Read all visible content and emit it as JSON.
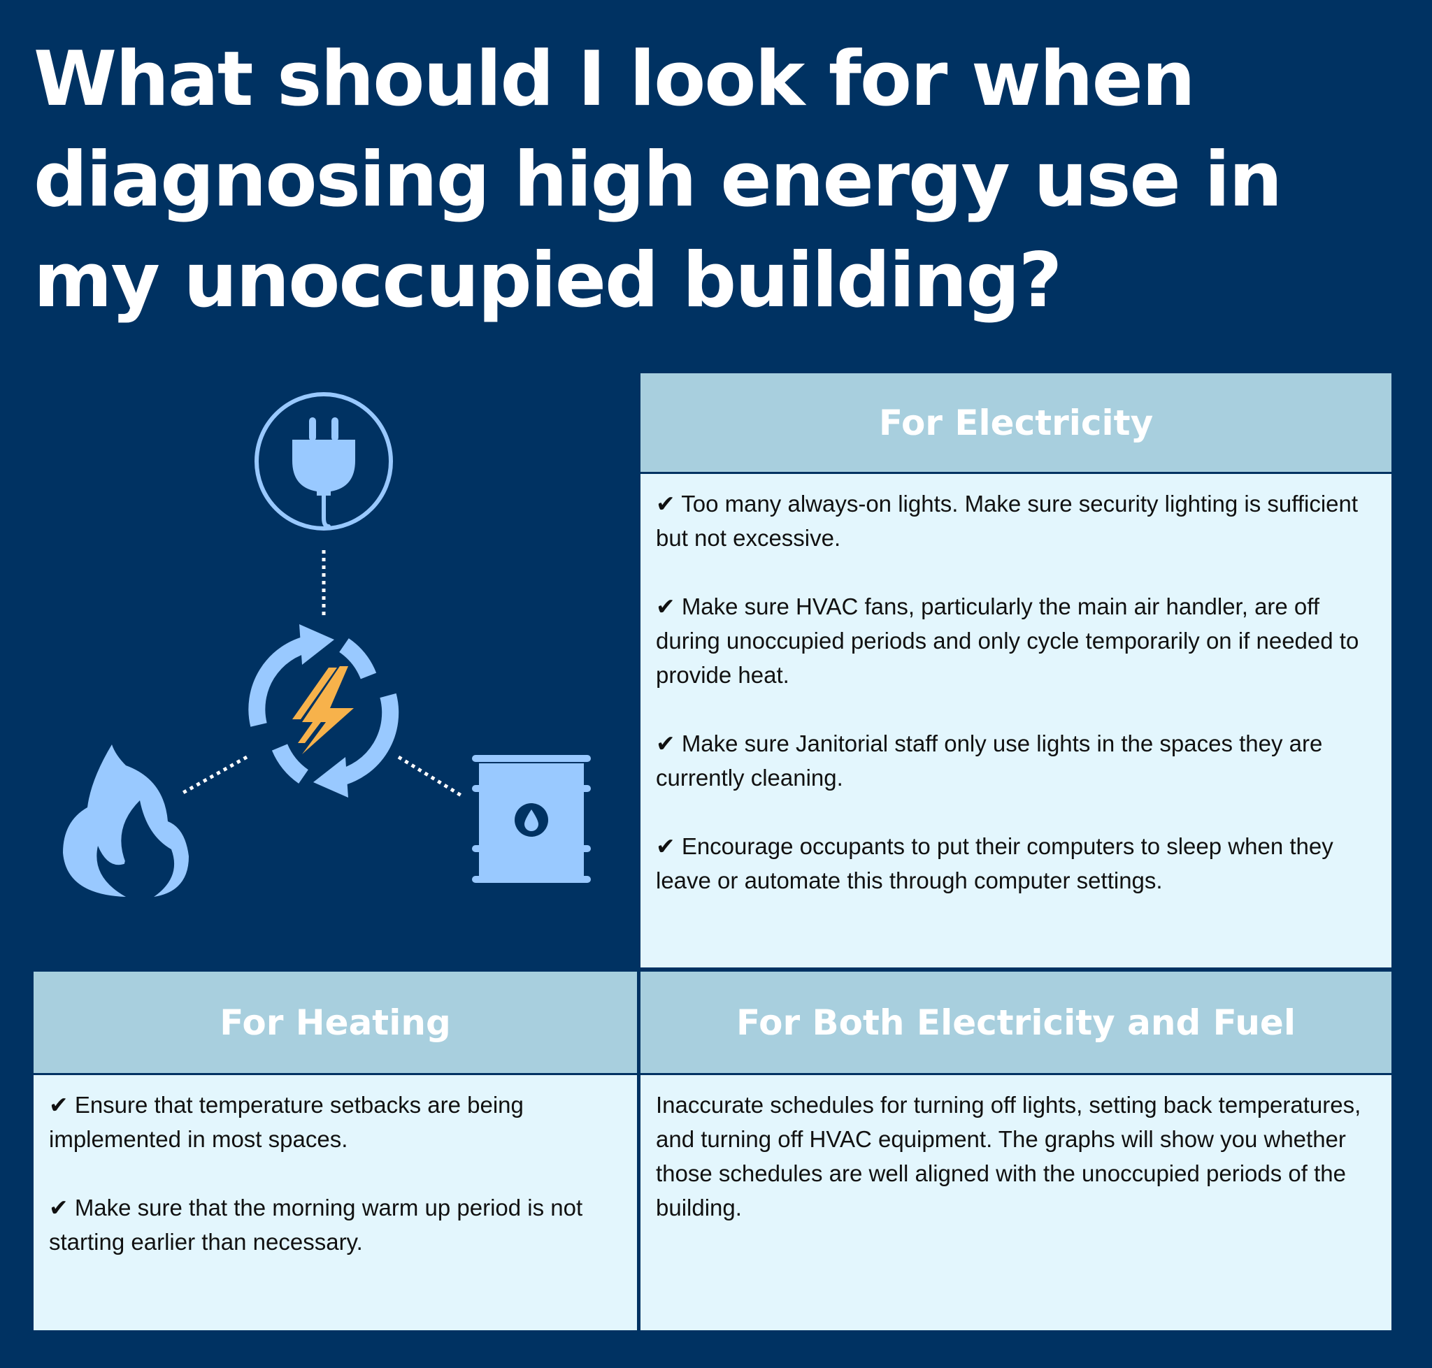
{
  "title": {
    "line1": "What should I look for when",
    "line2": "diagnosing high energy use in",
    "line3": "my unoccupied building?"
  },
  "icons": [
    "plug-icon",
    "energy-cycle-icon",
    "lightning-bolt-icon",
    "flame-icon",
    "oil-barrel-icon"
  ],
  "colors": {
    "background": "#003262",
    "panel_header": "#a8cfde",
    "panel_body": "#e3f6fd",
    "icon_fill": "#99c9ff",
    "bolt": "#f7b24b"
  },
  "panels": {
    "electricity": {
      "heading": "For Electricity",
      "items": [
        "✔ Too many always-on lights. Make sure security lighting is sufficient but not excessive.",
        "✔ Make sure HVAC fans, particularly the main air handler, are off during unoccupied periods and only cycle temporarily on if needed to provide heat.",
        "✔ Make sure Janitorial staff only use lights in the spaces they are currently cleaning.",
        "✔ Encourage occupants to put their computers to sleep when they leave or automate this through computer settings."
      ]
    },
    "heating": {
      "heading": "For Heating",
      "items": [
        "✔ Ensure that temperature setbacks are being implemented in most spaces.",
        "✔ Make sure that the morning warm up period is not starting earlier than necessary."
      ]
    },
    "both": {
      "heading": "For Both Electricity and Fuel",
      "text": "Inaccurate schedules for turning off lights, setting back temperatures, and turning off HVAC equipment. The graphs will show you whether those schedules are well aligned with the unoccupied periods of the building."
    }
  }
}
